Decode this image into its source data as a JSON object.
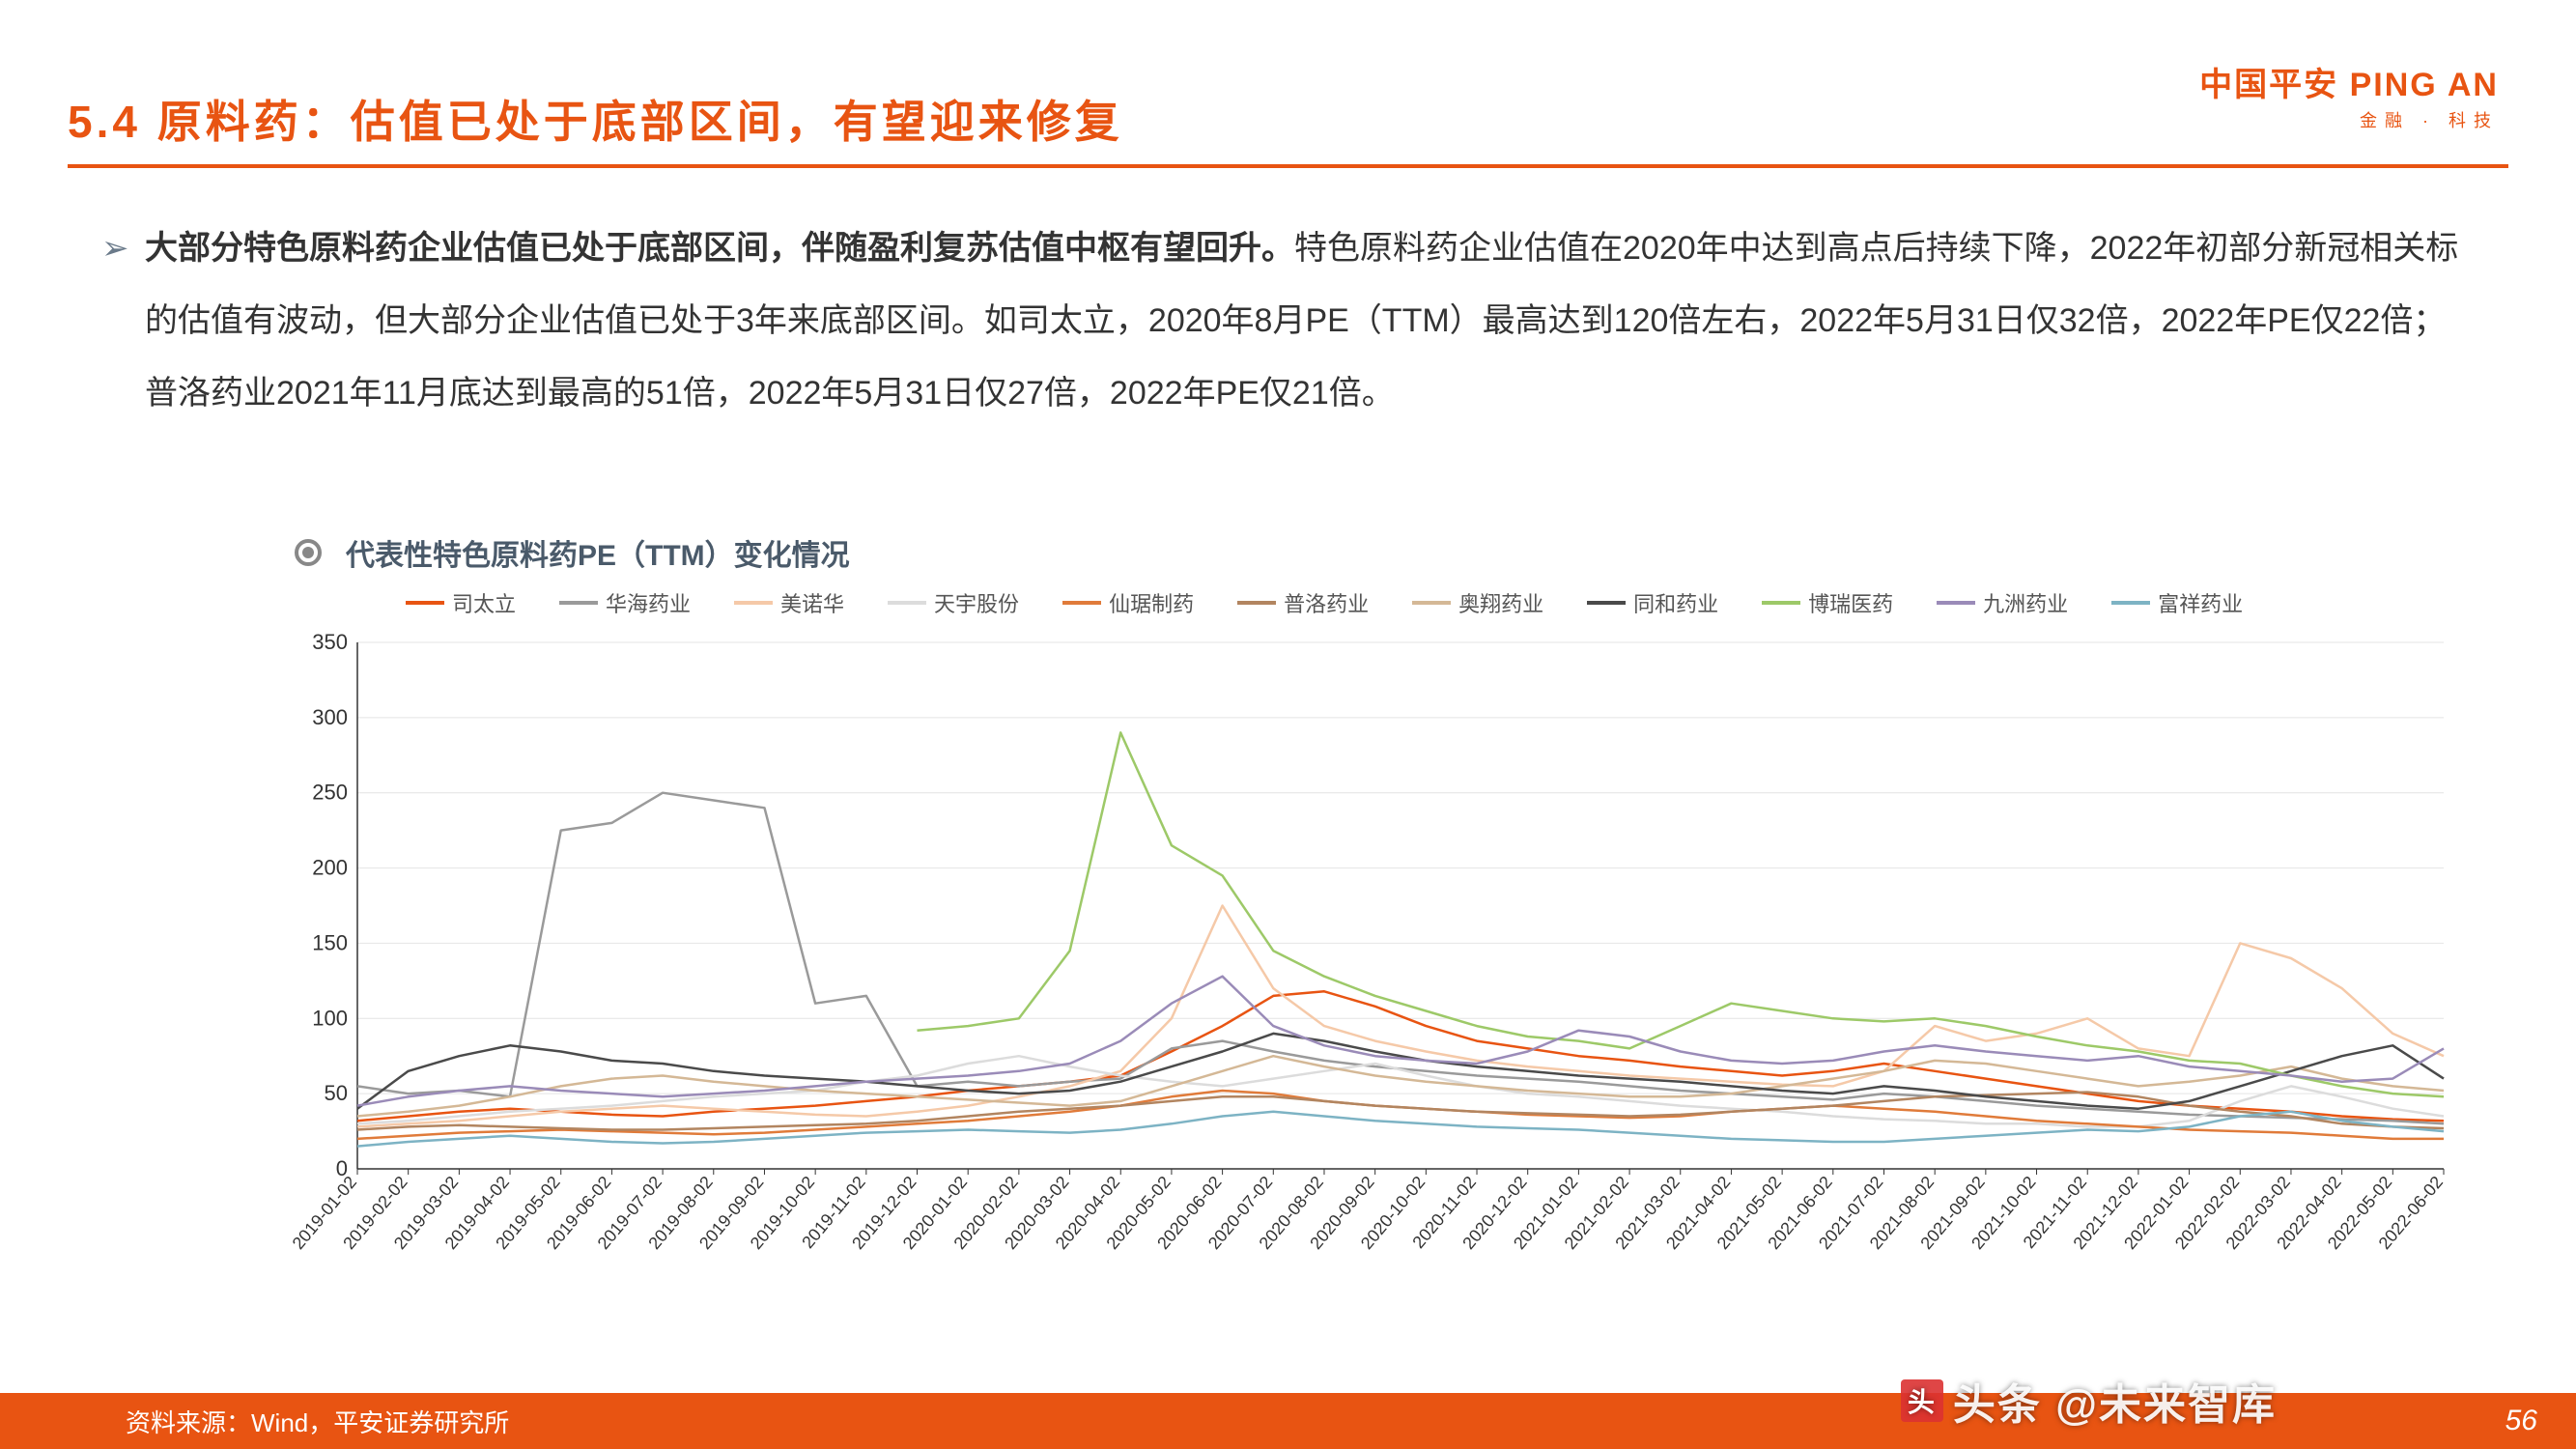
{
  "header": {
    "title": "5.4 原料药：估值已处于底部区间，有望迎来修复",
    "logo_cn": "中国平安 PING AN",
    "logo_sub": "金融 · 科技"
  },
  "body": {
    "bullet_bold": "大部分特色原料药企业估值已处于底部区间，伴随盈利复苏估值中枢有望回升。",
    "bullet_rest": "特色原料药企业估值在2020年中达到高点后持续下降，2022年初部分新冠相关标的估值有波动，但大部分企业估值已处于3年来底部区间。如司太立，2020年8月PE（TTM）最高达到120倍左右，2022年5月31日仅32倍，2022年PE仅22倍；普洛药业2021年11月底达到最高的51倍，2022年5月31日仅27倍，2022年PE仅21倍。",
    "chart_title": "代表性特色原料药PE（TTM）变化情况"
  },
  "chart": {
    "type": "line",
    "ylim": [
      0,
      350
    ],
    "ytick_step": 50,
    "background_color": "#ffffff",
    "grid_color": "#e4e4e4",
    "axis_color": "#333333",
    "label_fontsize": 22,
    "line_width": 2.5,
    "x_labels": [
      "2019-01-02",
      "2019-02-02",
      "2019-03-02",
      "2019-04-02",
      "2019-05-02",
      "2019-06-02",
      "2019-07-02",
      "2019-08-02",
      "2019-09-02",
      "2019-10-02",
      "2019-11-02",
      "2019-12-02",
      "2020-01-02",
      "2020-02-02",
      "2020-03-02",
      "2020-04-02",
      "2020-05-02",
      "2020-06-02",
      "2020-07-02",
      "2020-08-02",
      "2020-09-02",
      "2020-10-02",
      "2020-11-02",
      "2020-12-02",
      "2021-01-02",
      "2021-02-02",
      "2021-03-02",
      "2021-04-02",
      "2021-05-02",
      "2021-06-02",
      "2021-07-02",
      "2021-08-02",
      "2021-09-02",
      "2021-10-02",
      "2021-11-02",
      "2021-12-02",
      "2022-01-02",
      "2022-02-02",
      "2022-03-02",
      "2022-04-02",
      "2022-05-02",
      "2022-06-02"
    ],
    "series": [
      {
        "name": "司太立",
        "color": "#e85412",
        "values": [
          32,
          35,
          38,
          40,
          38,
          36,
          35,
          38,
          40,
          42,
          45,
          48,
          52,
          55,
          58,
          62,
          78,
          95,
          115,
          118,
          108,
          95,
          85,
          80,
          75,
          72,
          68,
          65,
          62,
          65,
          70,
          65,
          60,
          55,
          50,
          45,
          42,
          40,
          38,
          35,
          33,
          32
        ]
      },
      {
        "name": "华海药业",
        "color": "#9a9a9a",
        "values": [
          55,
          50,
          52,
          48,
          225,
          230,
          250,
          245,
          240,
          110,
          115,
          55,
          58,
          55,
          58,
          60,
          80,
          85,
          78,
          72,
          68,
          65,
          62,
          60,
          58,
          55,
          52,
          50,
          48,
          46,
          50,
          48,
          45,
          42,
          40,
          38,
          36,
          35,
          34,
          33,
          32,
          30
        ]
      },
      {
        "name": "美诺华",
        "color": "#f5c9a8",
        "values": [
          28,
          30,
          32,
          35,
          38,
          40,
          42,
          40,
          38,
          36,
          35,
          38,
          42,
          48,
          55,
          65,
          100,
          175,
          120,
          95,
          85,
          78,
          72,
          68,
          65,
          62,
          60,
          58,
          56,
          55,
          65,
          95,
          85,
          90,
          100,
          80,
          75,
          150,
          140,
          120,
          90,
          75
        ]
      },
      {
        "name": "天宇股份",
        "color": "#dcdcdc",
        "values": [
          30,
          32,
          35,
          38,
          40,
          42,
          45,
          48,
          50,
          52,
          58,
          62,
          70,
          75,
          68,
          62,
          58,
          55,
          60,
          65,
          70,
          62,
          55,
          50,
          48,
          45,
          42,
          40,
          38,
          35,
          33,
          32,
          30,
          30,
          28,
          28,
          32,
          45,
          55,
          48,
          40,
          35
        ]
      },
      {
        "name": "仙琚制药",
        "color": "#e07b3a",
        "values": [
          20,
          22,
          24,
          25,
          26,
          25,
          24,
          23,
          24,
          26,
          28,
          30,
          32,
          35,
          38,
          42,
          48,
          52,
          50,
          45,
          42,
          40,
          38,
          36,
          35,
          34,
          35,
          38,
          40,
          42,
          40,
          38,
          35,
          32,
          30,
          28,
          26,
          25,
          24,
          22,
          20,
          20
        ]
      },
      {
        "name": "普洛药业",
        "color": "#b28560",
        "values": [
          26,
          28,
          29,
          28,
          27,
          26,
          26,
          27,
          28,
          29,
          30,
          32,
          35,
          38,
          40,
          42,
          45,
          48,
          48,
          45,
          42,
          40,
          38,
          37,
          36,
          35,
          36,
          38,
          40,
          42,
          45,
          48,
          49,
          50,
          51,
          48,
          42,
          38,
          35,
          30,
          28,
          27
        ]
      },
      {
        "name": "奥翔药业",
        "color": "#d4b896",
        "values": [
          35,
          38,
          42,
          48,
          55,
          60,
          62,
          58,
          55,
          52,
          50,
          48,
          46,
          44,
          42,
          45,
          55,
          65,
          75,
          68,
          62,
          58,
          55,
          52,
          50,
          48,
          48,
          50,
          55,
          60,
          65,
          72,
          70,
          65,
          60,
          55,
          58,
          62,
          68,
          60,
          55,
          52
        ]
      },
      {
        "name": "同和药业",
        "color": "#4a4a4a",
        "values": [
          40,
          65,
          75,
          82,
          78,
          72,
          70,
          65,
          62,
          60,
          58,
          55,
          52,
          50,
          52,
          58,
          68,
          78,
          90,
          85,
          78,
          72,
          68,
          65,
          62,
          60,
          58,
          55,
          52,
          50,
          55,
          52,
          48,
          45,
          42,
          40,
          45,
          55,
          65,
          75,
          82,
          60
        ]
      },
      {
        "name": "博瑞医药",
        "color": "#9dc968",
        "values": [
          0,
          0,
          0,
          0,
          0,
          0,
          0,
          0,
          0,
          0,
          0,
          92,
          95,
          100,
          145,
          290,
          215,
          195,
          145,
          128,
          115,
          105,
          95,
          88,
          85,
          80,
          95,
          110,
          105,
          100,
          98,
          100,
          95,
          88,
          82,
          78,
          72,
          70,
          62,
          55,
          50,
          48
        ]
      },
      {
        "name": "九洲药业",
        "color": "#9a8bb8",
        "values": [
          42,
          48,
          52,
          55,
          52,
          50,
          48,
          50,
          52,
          55,
          58,
          60,
          62,
          65,
          70,
          85,
          110,
          128,
          95,
          82,
          75,
          72,
          70,
          78,
          92,
          88,
          78,
          72,
          70,
          72,
          78,
          82,
          78,
          75,
          72,
          75,
          68,
          65,
          62,
          58,
          60,
          80
        ]
      },
      {
        "name": "富祥药业",
        "color": "#7db3c4",
        "values": [
          15,
          18,
          20,
          22,
          20,
          18,
          17,
          18,
          20,
          22,
          24,
          25,
          26,
          25,
          24,
          26,
          30,
          35,
          38,
          35,
          32,
          30,
          28,
          27,
          26,
          24,
          22,
          20,
          19,
          18,
          18,
          20,
          22,
          24,
          26,
          25,
          28,
          35,
          38,
          32,
          28,
          25
        ]
      }
    ]
  },
  "footer": {
    "source": "资料来源：Wind，平安证券研究所",
    "page": "56",
    "watermark": "头条 @未来智库"
  }
}
